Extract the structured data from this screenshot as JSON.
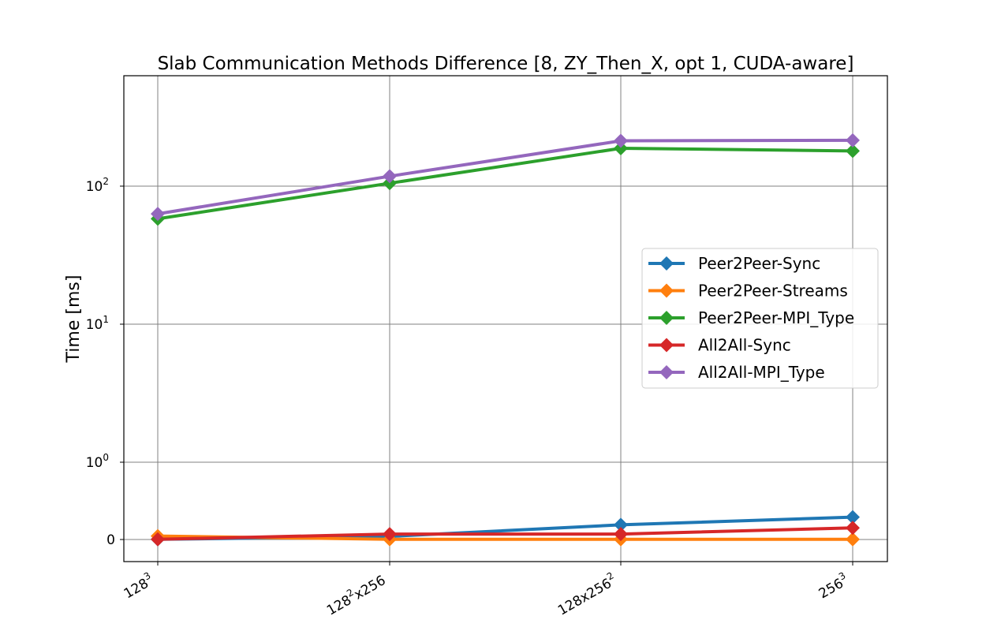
{
  "chart_data": {
    "type": "line",
    "title": "Slab Communication Methods Difference [8, ZY_Then_X, opt 1, CUDA-aware]",
    "xlabel": "",
    "ylabel": "Time [ms]",
    "yscale": "symlog",
    "grid": true,
    "legend_position": "center-right",
    "categories": [
      {
        "base": "128",
        "sup": "3",
        "rest": "",
        "sup2": ""
      },
      {
        "base": "128",
        "sup": "2",
        "rest": "x256",
        "sup2": ""
      },
      {
        "base": "128x256",
        "sup": "2",
        "rest": "",
        "sup2": ""
      },
      {
        "base": "256",
        "sup": "3",
        "rest": "",
        "sup2": ""
      }
    ],
    "yticks": [
      {
        "value": 0,
        "label": "0",
        "sup": ""
      },
      {
        "value": 1,
        "label": "10",
        "sup": "0"
      },
      {
        "value": 10,
        "label": "10",
        "sup": "1"
      },
      {
        "value": 100,
        "label": "10",
        "sup": "2"
      }
    ],
    "series": [
      {
        "name": "Peer2Peer-Sync",
        "color": "#1f77b4",
        "values": [
          0.002,
          0.04,
          0.19,
          0.29
        ]
      },
      {
        "name": "Peer2Peer-Streams",
        "color": "#ff7f0e",
        "values": [
          0.045,
          0.002,
          0.002,
          0.002
        ]
      },
      {
        "name": "Peer2Peer-MPI_Type",
        "color": "#2ca02c",
        "values": [
          58,
          105,
          188,
          180
        ]
      },
      {
        "name": "All2All-Sync",
        "color": "#d62728",
        "values": [
          0.002,
          0.07,
          0.07,
          0.15
        ]
      },
      {
        "name": "All2All-MPI_Type",
        "color": "#9467bd",
        "values": [
          63,
          118,
          213,
          215
        ]
      }
    ]
  }
}
